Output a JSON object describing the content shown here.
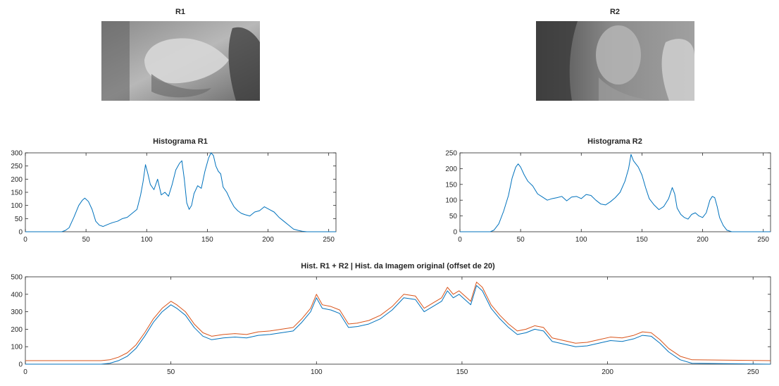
{
  "figure": {
    "image_r1": {
      "title": "R1"
    },
    "image_r2": {
      "title": "R2"
    }
  },
  "colors": {
    "series_blue": "#0072BD",
    "series_orange": "#D95319",
    "axis": "#262626"
  },
  "chart_data": [
    {
      "id": "hist-r1",
      "type": "line",
      "title": "Histograma R1",
      "xlabel": "",
      "ylabel": "",
      "xlim": [
        0,
        256
      ],
      "ylim": [
        0,
        300
      ],
      "xticks": [
        0,
        50,
        100,
        150,
        200,
        250
      ],
      "yticks": [
        0,
        50,
        100,
        150,
        200,
        250,
        300
      ],
      "grid": false,
      "series": [
        {
          "color": "#0072BD",
          "x": [
            0,
            30,
            33,
            36,
            40,
            44,
            47,
            49,
            52,
            55,
            58,
            61,
            64,
            68,
            72,
            76,
            80,
            84,
            88,
            92,
            95,
            97,
            99,
            101,
            103,
            106,
            109,
            112,
            115,
            118,
            121,
            124,
            127,
            129,
            131,
            133,
            135,
            137,
            139,
            142,
            145,
            148,
            151,
            153,
            155,
            157,
            159,
            161,
            163,
            166,
            169,
            172,
            175,
            178,
            181,
            185,
            189,
            193,
            197,
            201,
            205,
            209,
            213,
            217,
            221,
            225,
            228,
            232,
            256
          ],
          "y": [
            0,
            0,
            5,
            15,
            55,
            100,
            120,
            128,
            115,
            85,
            40,
            25,
            20,
            28,
            35,
            40,
            50,
            55,
            70,
            85,
            140,
            190,
            255,
            220,
            180,
            160,
            200,
            140,
            150,
            135,
            180,
            235,
            260,
            270,
            200,
            110,
            85,
            100,
            145,
            175,
            165,
            230,
            280,
            300,
            290,
            250,
            230,
            220,
            170,
            150,
            120,
            95,
            80,
            70,
            65,
            60,
            75,
            80,
            95,
            85,
            75,
            55,
            40,
            25,
            10,
            5,
            2,
            0,
            0
          ]
        }
      ]
    },
    {
      "id": "hist-r2",
      "type": "line",
      "title": "Histograma R2",
      "xlabel": "",
      "ylabel": "",
      "xlim": [
        0,
        256
      ],
      "ylim": [
        0,
        250
      ],
      "xticks": [
        0,
        50,
        100,
        150,
        200,
        250
      ],
      "yticks": [
        0,
        50,
        100,
        150,
        200,
        250
      ],
      "grid": false,
      "series": [
        {
          "color": "#0072BD",
          "x": [
            0,
            25,
            28,
            32,
            36,
            40,
            43,
            46,
            48,
            50,
            53,
            56,
            60,
            64,
            68,
            72,
            76,
            80,
            84,
            88,
            92,
            96,
            100,
            104,
            108,
            112,
            116,
            120,
            124,
            128,
            132,
            136,
            139,
            141,
            143,
            145,
            147,
            150,
            153,
            156,
            160,
            164,
            168,
            172,
            175,
            177,
            179,
            182,
            185,
            188,
            191,
            194,
            197,
            200,
            203,
            206,
            208,
            210,
            212,
            214,
            217,
            220,
            224,
            228,
            256
          ],
          "y": [
            0,
            0,
            5,
            25,
            65,
            115,
            170,
            205,
            215,
            205,
            180,
            160,
            145,
            120,
            110,
            100,
            105,
            108,
            112,
            98,
            110,
            112,
            105,
            118,
            115,
            100,
            88,
            85,
            95,
            108,
            125,
            160,
            200,
            245,
            225,
            215,
            205,
            180,
            140,
            105,
            85,
            70,
            80,
            105,
            140,
            120,
            75,
            55,
            45,
            40,
            55,
            60,
            50,
            45,
            60,
            100,
            112,
            108,
            80,
            45,
            20,
            5,
            0,
            0,
            0
          ]
        }
      ]
    },
    {
      "id": "hist-sum",
      "type": "line",
      "title": "Hist. R1 + R2 | Hist. da Imagem original (offset de 20)",
      "xlabel": "",
      "ylabel": "",
      "xlim": [
        0,
        256
      ],
      "ylim": [
        0,
        500
      ],
      "xticks": [
        0,
        50,
        100,
        150,
        200,
        250
      ],
      "yticks": [
        0,
        100,
        200,
        300,
        400,
        500
      ],
      "grid": false,
      "series": [
        {
          "color": "#0072BD",
          "x": [
            0,
            26,
            29,
            32,
            35,
            38,
            41,
            44,
            47,
            50,
            52,
            55,
            58,
            61,
            64,
            68,
            72,
            76,
            80,
            84,
            88,
            92,
            95,
            98,
            100,
            102,
            105,
            108,
            111,
            114,
            118,
            122,
            126,
            130,
            134,
            137,
            140,
            143,
            145,
            147,
            149,
            151,
            153,
            155,
            157,
            160,
            163,
            166,
            169,
            172,
            175,
            178,
            181,
            185,
            189,
            193,
            197,
            201,
            205,
            209,
            212,
            215,
            218,
            221,
            225,
            229,
            256
          ],
          "y": [
            0,
            0,
            5,
            20,
            45,
            90,
            160,
            240,
            300,
            340,
            320,
            280,
            210,
            160,
            140,
            150,
            155,
            150,
            165,
            170,
            180,
            190,
            240,
            300,
            380,
            320,
            310,
            290,
            210,
            215,
            230,
            260,
            310,
            380,
            370,
            300,
            330,
            360,
            420,
            380,
            400,
            370,
            340,
            450,
            420,
            320,
            260,
            210,
            170,
            180,
            200,
            190,
            130,
            115,
            100,
            105,
            120,
            135,
            130,
            145,
            165,
            160,
            120,
            70,
            25,
            5,
            0
          ]
        },
        {
          "color": "#D95319",
          "x": [
            0,
            26,
            29,
            32,
            35,
            38,
            41,
            44,
            47,
            50,
            52,
            55,
            58,
            61,
            64,
            68,
            72,
            76,
            80,
            84,
            88,
            92,
            95,
            98,
            100,
            102,
            105,
            108,
            111,
            114,
            118,
            122,
            126,
            130,
            134,
            137,
            140,
            143,
            145,
            147,
            149,
            151,
            153,
            155,
            157,
            160,
            163,
            166,
            169,
            172,
            175,
            178,
            181,
            185,
            189,
            193,
            197,
            201,
            205,
            209,
            212,
            215,
            218,
            221,
            225,
            229,
            256
          ],
          "y": [
            20,
            20,
            25,
            40,
            65,
            110,
            180,
            260,
            320,
            360,
            340,
            300,
            230,
            180,
            160,
            170,
            175,
            170,
            185,
            190,
            200,
            210,
            260,
            320,
            400,
            340,
            330,
            310,
            230,
            235,
            250,
            280,
            330,
            400,
            390,
            320,
            350,
            380,
            440,
            400,
            420,
            390,
            360,
            470,
            440,
            340,
            280,
            230,
            190,
            200,
            220,
            210,
            150,
            135,
            120,
            125,
            140,
            155,
            150,
            165,
            185,
            180,
            140,
            90,
            45,
            25,
            20
          ]
        }
      ]
    }
  ]
}
